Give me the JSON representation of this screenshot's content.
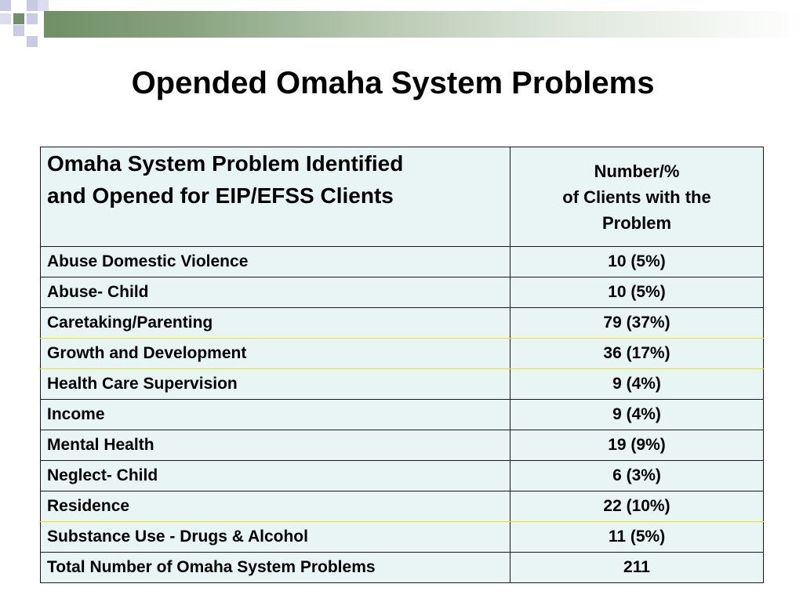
{
  "title": "Opended Omaha System Problems",
  "header": {
    "problem_line1": "Omaha  System Problem Identified",
    "problem_line2": "and Opened for EIP/EFSS Clients",
    "number_line1": "Number/%",
    "number_line2": "of Clients with the",
    "number_line3": "Problem"
  },
  "rows": [
    {
      "problem": "Abuse Domestic Violence",
      "value": "10 (5%)"
    },
    {
      "problem": "Abuse- Child",
      "value": "10 (5%)"
    },
    {
      "problem": "Caretaking/Parenting",
      "value": "79 (37%)"
    },
    {
      "problem": "Growth and Development",
      "value": "36 (17%)"
    },
    {
      "problem": "Health Care Supervision",
      "value": "9 (4%)"
    },
    {
      "problem": "Income",
      "value": "9 (4%)"
    },
    {
      "problem": "Mental Health",
      "value": "19 (9%)"
    },
    {
      "problem": "Neglect- Child",
      "value": "6 (3%)"
    },
    {
      "problem": "Residence",
      "value": "22 (10%)"
    },
    {
      "problem": "Substance Use -  Drugs & Alcohol",
      "value": "11 (5%)"
    },
    {
      "problem": "Total Number of Omaha System Problems",
      "value": "211"
    }
  ],
  "colors": {
    "table_fill": "#e9f5f4",
    "accent_green": "#6f8f66",
    "accent_lavender": "#c9cbe6",
    "row_separator_yellow": "#f2e500"
  }
}
